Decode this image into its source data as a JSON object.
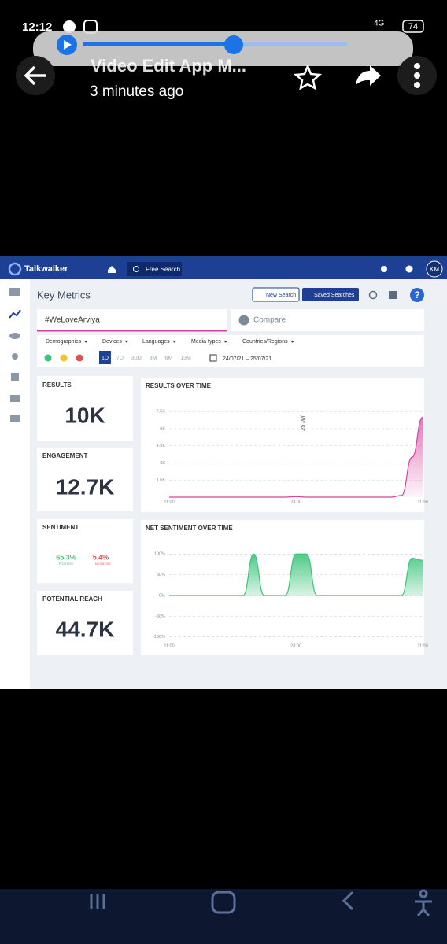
{
  "status_bar": {
    "time": "12:12",
    "network": "4G",
    "battery": "74"
  },
  "header": {
    "title": "Video Edit App M...",
    "subtitle": "3 minutes ago"
  },
  "app": {
    "brand": "Talkwalker",
    "free_search": "Free Search",
    "avatar": "KM",
    "page_title": "Key Metrics",
    "new_search": "New Search",
    "saved_searches": "Saved Searches",
    "query": "#WeLoveArviya",
    "compare": "Compare",
    "filters": [
      "Demographics",
      "Devices",
      "Languages",
      "Media types",
      "Countries/Regions"
    ],
    "periods": [
      "1D",
      "7D",
      "30D",
      "3M",
      "6M",
      "13M"
    ],
    "date_range": "24/07/21 – 25/07/21"
  },
  "metrics": [
    {
      "label": "RESULTS",
      "value": "10K"
    },
    {
      "label": "ENGAGEMENT",
      "value": "12.7K"
    },
    {
      "label": "POTENTIAL REACH",
      "value": "44.7K"
    }
  ],
  "sentiment": {
    "label": "SENTIMENT",
    "positive": "65.3%",
    "positive_label": "POSITIVE",
    "negative": "5.4%",
    "negative_label": "NEGATIVE"
  },
  "chart_data": [
    {
      "type": "area",
      "title": "RESULTS OVER TIME",
      "annotation": "25 Jul",
      "color": "#d6409f",
      "grid": true,
      "categories": [
        "11:00",
        null,
        null,
        null,
        null,
        null,
        null,
        null,
        null,
        null,
        null,
        null,
        "23:00",
        null,
        null,
        null,
        null,
        null,
        null,
        null,
        null,
        null,
        null,
        null,
        "11:00"
      ],
      "values": [
        0,
        0,
        0,
        0,
        0,
        0,
        0,
        0,
        0,
        0,
        0,
        0,
        50,
        0,
        0,
        0,
        0,
        0,
        0,
        0,
        0,
        0,
        150,
        3500,
        7000
      ],
      "ylim": [
        0,
        8000
      ],
      "yticks": [
        {
          "value": 1500,
          "label": "1.5K"
        },
        {
          "value": 3000,
          "label": "3K"
        },
        {
          "value": 4500,
          "label": "4.5K"
        },
        {
          "value": 6000,
          "label": "6K"
        },
        {
          "value": 7500,
          "label": "7.5K"
        }
      ]
    },
    {
      "type": "area",
      "title": "NET SENTIMENT OVER TIME",
      "color": "#3cc47a",
      "grid": true,
      "categories": [
        "11:00",
        null,
        null,
        null,
        null,
        null,
        null,
        null,
        null,
        null,
        null,
        null,
        "23:00",
        null,
        null,
        null,
        null,
        null,
        null,
        null,
        null,
        null,
        null,
        null,
        "11:00"
      ],
      "values": [
        0,
        0,
        0,
        0,
        0,
        0,
        0,
        0,
        100,
        0,
        0,
        0,
        100,
        100,
        0,
        0,
        0,
        0,
        0,
        0,
        0,
        0,
        0,
        90,
        85
      ],
      "ylim": [
        -110,
        110
      ],
      "yticks": [
        {
          "value": -100,
          "label": "-100%"
        },
        {
          "value": -50,
          "label": "-50%"
        },
        {
          "value": 0,
          "label": "0%"
        },
        {
          "value": 50,
          "label": "50%"
        },
        {
          "value": 100,
          "label": "100%"
        }
      ]
    }
  ]
}
